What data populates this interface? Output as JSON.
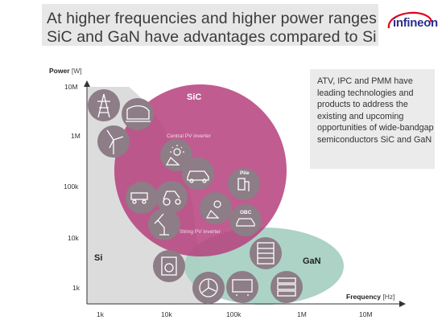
{
  "title": {
    "line1": "At higher frequencies and higher power ranges",
    "line2": "SiC and GaN have advantages compared to Si"
  },
  "logo": {
    "text": "infineon"
  },
  "axes": {
    "y_label": "Power",
    "y_unit": "[W]",
    "x_label": "Frequency",
    "x_unit": "[Hz]",
    "y_ticks": [
      "10M",
      "1M",
      "100k",
      "10k",
      "1k"
    ],
    "x_ticks": [
      "1k",
      "10k",
      "100k",
      "1M",
      "10M"
    ]
  },
  "regions": {
    "si": "Si",
    "sic": "SiC",
    "gan": "GaN"
  },
  "labels": {
    "central_pv": "Central PV inverter",
    "string_pv": "String PV inverter",
    "pile": "Pile",
    "obc": "OBC"
  },
  "info_box": {
    "text": "ATV, IPC and PMM have leading technologies and products to address the existing and upcoming opportunities of wide-bandgap semiconductors SiC and GaN"
  },
  "colors": {
    "si_region": "#dcdcdc",
    "sic_region": "#b5477f",
    "gan_region": "#a9d1c4",
    "icon_circle": "#8d7d86",
    "title_box": "#e7e7e7",
    "info_box": "#ebebeb"
  }
}
